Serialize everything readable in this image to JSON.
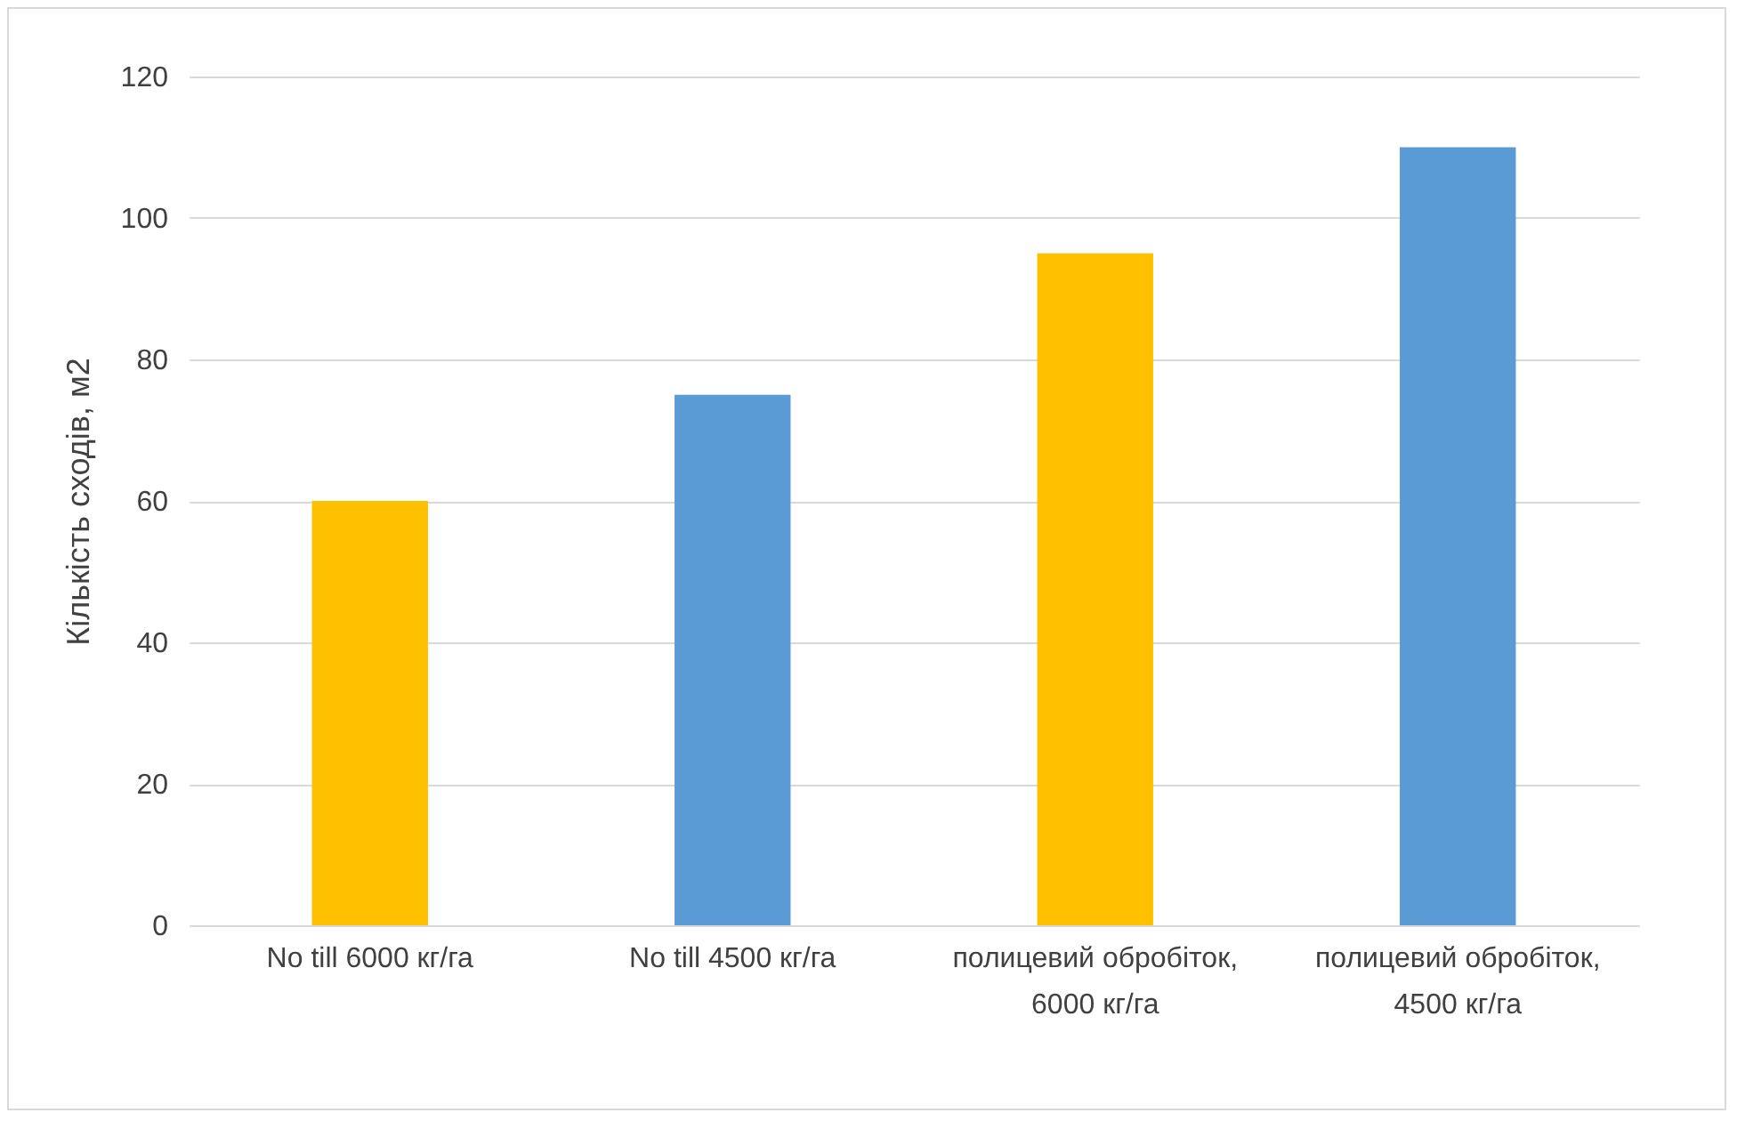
{
  "chart_data": {
    "type": "bar",
    "ylabel": "Кількість сходів, м2",
    "categories": [
      "No till   6000 кг/га",
      "No till  4500 кг/га",
      "полицевий обробіток, 6000 кг/га",
      "полицевий обробіток,  4500 кг/га"
    ],
    "values": [
      60,
      75,
      95,
      110
    ],
    "colors": [
      "#ffc000",
      "#5b9bd5",
      "#ffc000",
      "#5b9bd5"
    ],
    "ylim": [
      0,
      120
    ],
    "yticks": [
      0,
      20,
      40,
      60,
      80,
      100,
      120
    ],
    "grid": "y"
  }
}
